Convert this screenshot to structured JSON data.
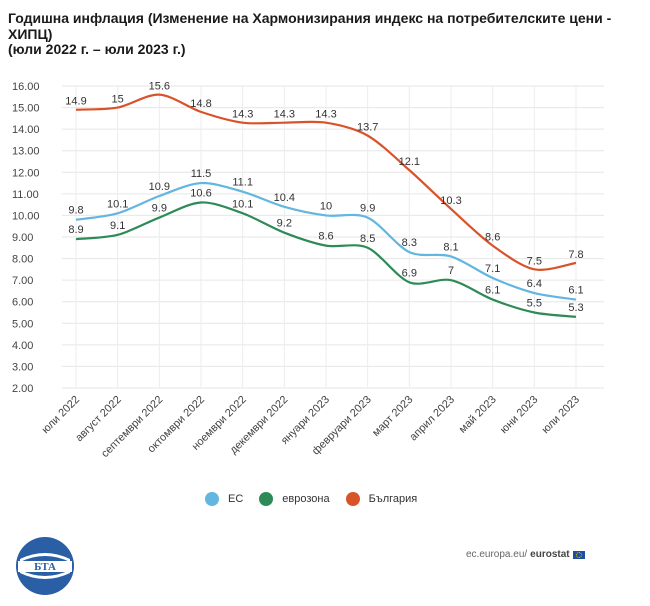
{
  "header": {
    "title": "Годишна инфлация (Изменение на Хармонизирания индекс на потребителските цени - ХИПЦ)",
    "subtitle": "(юли 2022 г. – юли 2023 г.)"
  },
  "chart_data": {
    "type": "line",
    "title": "Годишна инфлация (Изменение на Хармонизирания индекс на потребителските цени - ХИПЦ)",
    "subtitle": "(юли 2022 г. – юли 2023 г.)",
    "categories": [
      "юли 2022",
      "август 2022",
      "септември 2022",
      "октомври 2022",
      "ноември 2022",
      "декември 2022",
      "януари 2023",
      "февруари 2023",
      "март 2023",
      "април 2023",
      "май 2023",
      "юни 2023",
      "юли 2023"
    ],
    "y_ticks": [
      "2.00",
      "3.00",
      "4.00",
      "5.00",
      "6.00",
      "7.00",
      "8.00",
      "9.00",
      "10.00",
      "11.00",
      "12.00",
      "13.00",
      "14.00",
      "15.00",
      "16.00"
    ],
    "ylim": [
      2,
      16
    ],
    "grid": true,
    "legend_position": "bottom",
    "series": [
      {
        "name": "ЕС",
        "color": "#62b6e0",
        "values": [
          9.8,
          10.1,
          10.9,
          11.5,
          11.1,
          10.4,
          10,
          9.9,
          8.3,
          8.1,
          7.1,
          6.4,
          6.1
        ],
        "labels": [
          "9.8",
          "10.1",
          "10.9",
          "11.5",
          "11.1",
          "10.4",
          "10",
          "9.9",
          "8.3",
          "8.1",
          "7.1",
          "6.4",
          "6.1"
        ]
      },
      {
        "name": "еврозона",
        "color": "#2e8b57",
        "values": [
          8.9,
          9.1,
          9.9,
          10.6,
          10.1,
          9.2,
          8.6,
          8.5,
          6.9,
          7,
          6.1,
          5.5,
          5.3
        ],
        "labels": [
          "8.9",
          "9.1",
          "9.9",
          "10.6",
          "10.1",
          "9.2",
          "8.6",
          "8.5",
          "6.9",
          "7",
          "6.1",
          "5.5",
          "5.3"
        ]
      },
      {
        "name": "България",
        "color": "#d9532a",
        "values": [
          14.9,
          15,
          15.6,
          14.8,
          14.3,
          14.3,
          14.3,
          13.7,
          12.1,
          10.3,
          8.6,
          7.5,
          7.8
        ],
        "labels": [
          "14.9",
          "15",
          "15.6",
          "14.8",
          "14.3",
          "14.3",
          "14.3",
          "13.7",
          "12.1",
          "10.3",
          "8.6",
          "7.5",
          "7.8"
        ]
      }
    ]
  },
  "legend": {
    "items": [
      {
        "label": "ЕС",
        "color": "#62b6e0"
      },
      {
        "label": "еврозона",
        "color": "#2e8b57"
      },
      {
        "label": "България",
        "color": "#d9532a"
      }
    ]
  },
  "footer": {
    "source_prefix": "ec.europa.eu/",
    "source_bold": "eurostat",
    "logo_text": "БТА"
  }
}
